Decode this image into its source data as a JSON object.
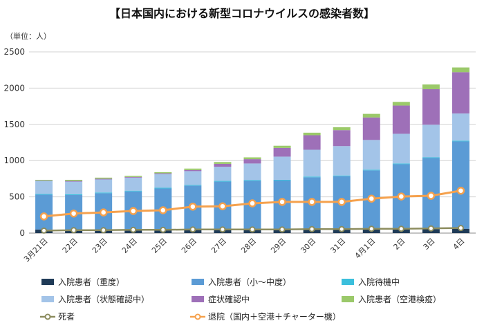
{
  "chart_data": {
    "type": "bar",
    "stacked": true,
    "title": "【日本国内における新型コロナウイルスの感染者数】",
    "unit_label": "（単位：人）",
    "categories": [
      "3月21日",
      "22日",
      "23日",
      "24日",
      "25日",
      "26日",
      "27日",
      "28日",
      "29日",
      "30日",
      "31日",
      "4月1日",
      "2日",
      "3日",
      "4日"
    ],
    "ylim": [
      0,
      2500
    ],
    "yticks": [
      0,
      500,
      1000,
      1500,
      2000,
      2500
    ],
    "grid": true,
    "series": [
      {
        "name": "入院患者（重度）",
        "color": "#1f3b57",
        "values": [
          50,
          50,
          45,
          45,
          50,
          55,
          55,
          55,
          55,
          55,
          55,
          55,
          55,
          55,
          60
        ]
      },
      {
        "name": "入院患者（小～中度）",
        "color": "#5b9bd5",
        "values": [
          480,
          475,
          505,
          530,
          565,
          600,
          655,
          665,
          670,
          715,
          730,
          810,
          895,
          980,
          1205
        ]
      },
      {
        "name": "入院待機中",
        "color": "#3bbfdc",
        "values": [
          10,
          10,
          10,
          10,
          10,
          10,
          10,
          10,
          10,
          10,
          10,
          10,
          10,
          10,
          10
        ]
      },
      {
        "name": "入院患者（状態確認中）",
        "color": "#a3c4e8",
        "values": [
          180,
          175,
          180,
          180,
          190,
          190,
          195,
          230,
          320,
          370,
          405,
          410,
          410,
          450,
          375
        ]
      },
      {
        "name": "症状確認中",
        "color": "#9e70b8",
        "values": [
          5,
          10,
          10,
          10,
          10,
          15,
          40,
          60,
          120,
          200,
          220,
          310,
          390,
          490,
          570
        ]
      },
      {
        "name": "入院患者（空港検疫）",
        "color": "#9bc96a",
        "values": [
          10,
          15,
          15,
          15,
          15,
          20,
          25,
          25,
          30,
          35,
          40,
          50,
          50,
          65,
          65
        ]
      }
    ],
    "lines": [
      {
        "name": "死者",
        "color": "#8c8c5e",
        "values": [
          35,
          40,
          40,
          45,
          45,
          50,
          50,
          50,
          50,
          55,
          55,
          60,
          60,
          65,
          70
        ]
      },
      {
        "name": "退院（国内＋空港＋チャーター機）",
        "color": "#f5a14d",
        "values": [
          230,
          270,
          285,
          305,
          315,
          365,
          370,
          410,
          430,
          430,
          430,
          475,
          505,
          515,
          585
        ]
      }
    ],
    "legend_placement": "bottom"
  }
}
